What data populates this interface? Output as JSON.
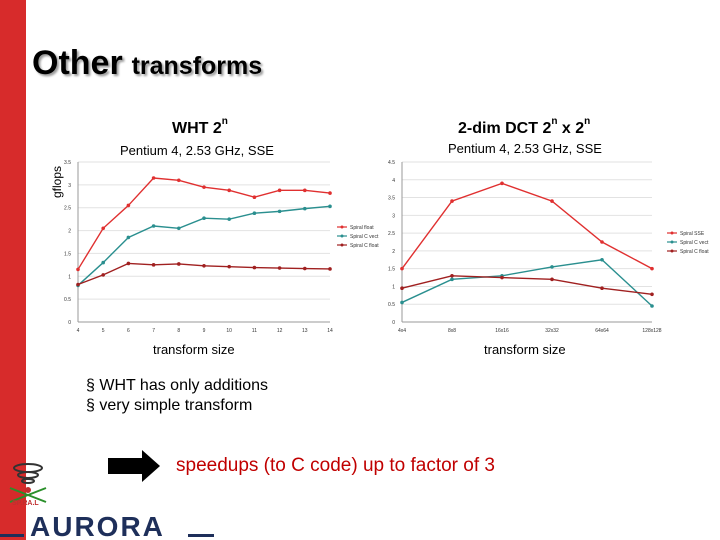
{
  "slide": {
    "title_big": "Other",
    "title_small": "transforms",
    "ylabel": "gflops",
    "bullets": [
      "WHT has only additions",
      "very simple transform"
    ],
    "speedup_text": "speedups (to C code) up to factor of 3",
    "logo_small_text": "SP.RA.L",
    "logo_text": "AURORA"
  },
  "chart_data": [
    {
      "type": "line",
      "title_main": "WHT 2",
      "title_sup": "n",
      "subtitle": "Pentium 4, 2.53 GHz, SSE",
      "xlabel": "transform size",
      "ylabel": "gflops",
      "categories": [
        "4",
        "5",
        "6",
        "7",
        "8",
        "9",
        "10",
        "11",
        "12",
        "13",
        "14"
      ],
      "ylim": [
        0,
        3.5
      ],
      "yticks": [
        "0",
        "0.5",
        "1",
        "1.5",
        "2",
        "2.5",
        "3",
        "3.5"
      ],
      "legend_position": "right",
      "series": [
        {
          "name": "Spiral float",
          "color": "#e03030",
          "values": [
            1.15,
            2.05,
            2.55,
            3.15,
            3.1,
            2.95,
            2.88,
            2.73,
            2.88,
            2.88,
            2.82
          ]
        },
        {
          "name": "Spiral C vect",
          "color": "#2a8f8f",
          "values": [
            0.8,
            1.3,
            1.85,
            2.1,
            2.05,
            2.27,
            2.25,
            2.38,
            2.42,
            2.48,
            2.53
          ]
        },
        {
          "name": "Spiral C float",
          "color": "#a02020",
          "values": [
            0.82,
            1.03,
            1.28,
            1.25,
            1.27,
            1.23,
            1.21,
            1.19,
            1.18,
            1.17,
            1.16
          ]
        }
      ]
    },
    {
      "type": "line",
      "title_main": "2-dim DCT 2",
      "title_sup_1": "n",
      "title_mid": " x 2",
      "title_sup_2": "n",
      "subtitle": "Pentium 4, 2.53 GHz, SSE",
      "xlabel": "transform size",
      "categories": [
        "4x4",
        "8x8",
        "16x16",
        "32x32",
        "64x64",
        "128x128"
      ],
      "ylim": [
        0,
        4.5
      ],
      "yticks": [
        "0",
        "0.5",
        "1",
        "1.5",
        "2",
        "2.5",
        "3",
        "3.5",
        "4",
        "4.5"
      ],
      "legend_position": "right",
      "series": [
        {
          "name": "Spiral SSE",
          "color": "#e03030",
          "values": [
            1.5,
            3.4,
            3.9,
            3.4,
            2.25,
            1.5
          ]
        },
        {
          "name": "Spiral C vect",
          "color": "#2a8f8f",
          "values": [
            0.55,
            1.2,
            1.3,
            1.55,
            1.75,
            0.45
          ]
        },
        {
          "name": "Spiral C float",
          "color": "#a02020",
          "values": [
            0.95,
            1.3,
            1.25,
            1.2,
            0.95,
            0.78
          ]
        }
      ]
    }
  ]
}
